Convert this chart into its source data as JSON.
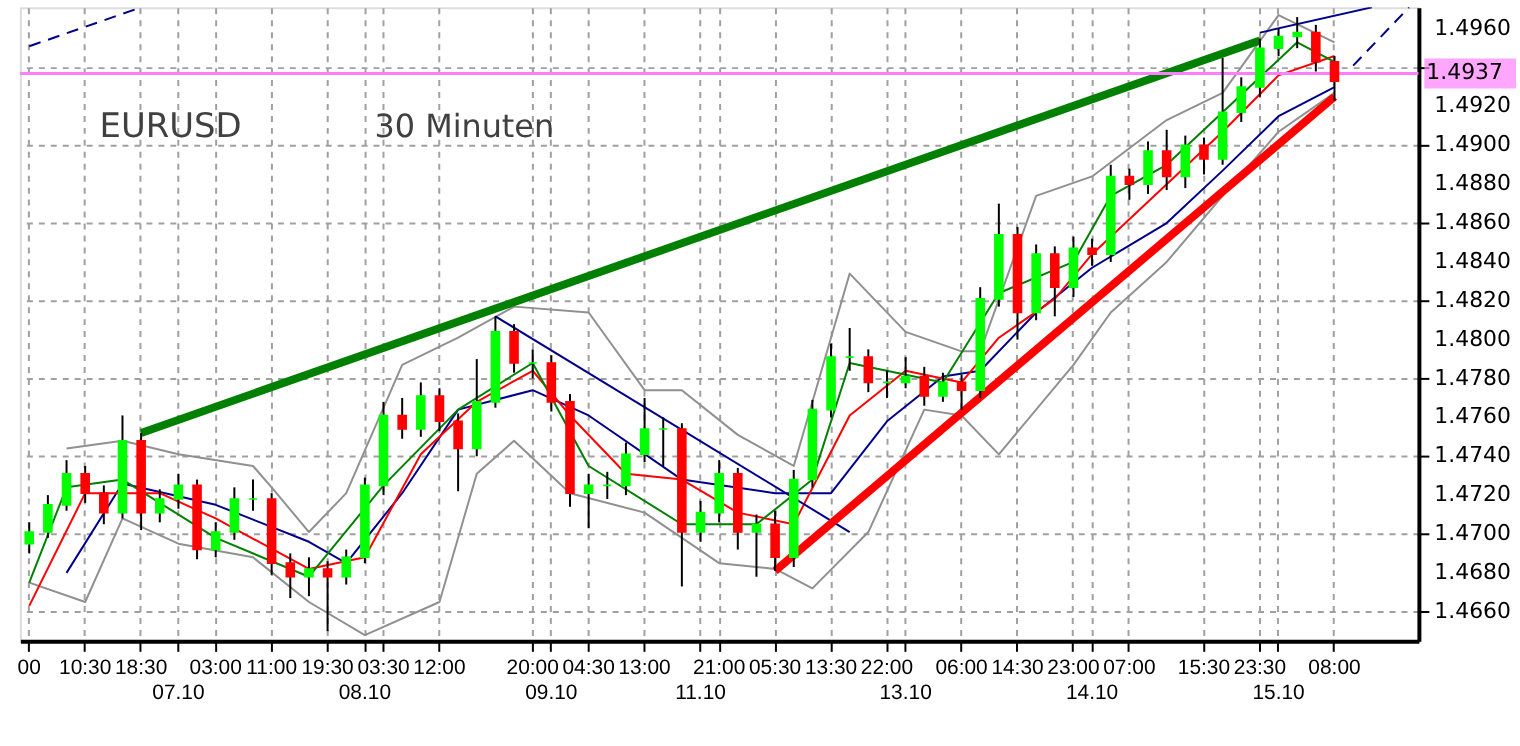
{
  "chart_data": {
    "type": "candlestick",
    "ylim": [
      1.4645,
      1.4971
    ],
    "categories": [
      "00",
      null,
      null,
      "10:30",
      null,
      null,
      "18:30",
      null,
      "07.10",
      null,
      "03:00",
      null,
      null,
      "11:00",
      null,
      null,
      "19:30",
      null,
      "08.10",
      "03:30",
      null,
      null,
      "12:00",
      null,
      null,
      null,
      null,
      "20:00",
      "09.10",
      null,
      "04:30",
      null,
      null,
      "13:00",
      null,
      null,
      "11.10",
      "21:00",
      null,
      null,
      "05:30",
      null,
      null,
      "13:30",
      null,
      null,
      "22:00",
      "13.10",
      null,
      null,
      "06:00",
      null,
      null,
      "14:30",
      null,
      null,
      "23:00",
      "14.10",
      null,
      "07:00",
      null,
      null,
      null,
      "15:30",
      null,
      null,
      "23:30",
      "15.10",
      null,
      null,
      "08:00",
      null,
      null,
      null,
      null
    ],
    "yticks": [
      {
        "value": 1.466,
        "label": "1.4660"
      },
      {
        "value": 1.468,
        "label": "1.4680"
      },
      {
        "value": 1.47,
        "label": "1.4700"
      },
      {
        "value": 1.472,
        "label": "1.4720"
      },
      {
        "value": 1.474,
        "label": "1.4740"
      },
      {
        "value": 1.476,
        "label": "1.4760"
      },
      {
        "value": 1.478,
        "label": "1.4780"
      },
      {
        "value": 1.48,
        "label": "1.4800"
      },
      {
        "value": 1.482,
        "label": "1.4820"
      },
      {
        "value": 1.484,
        "label": "1.4840"
      },
      {
        "value": 1.486,
        "label": "1.4860"
      },
      {
        "value": 1.488,
        "label": "1.4880"
      },
      {
        "value": 1.49,
        "label": "1.4900"
      },
      {
        "value": 1.492,
        "label": "1.4920"
      },
      {
        "value": 1.494,
        "label": null
      },
      {
        "value": 1.496,
        "label": "1.4960"
      }
    ],
    "grid": true,
    "ohlc": [
      [
        1.4695,
        1.4706,
        1.469,
        1.4701
      ],
      [
        1.4701,
        1.472,
        1.4698,
        1.4715
      ],
      [
        1.4715,
        1.4738,
        1.4712,
        1.4731
      ],
      [
        1.4731,
        1.4735,
        1.4716,
        1.4721
      ],
      [
        1.4721,
        1.4725,
        1.4705,
        1.4711
      ],
      [
        1.4711,
        1.4761,
        1.4708,
        1.4748
      ],
      [
        1.4748,
        1.4752,
        1.4702,
        1.4711
      ],
      [
        1.4711,
        1.4723,
        1.4706,
        1.4718
      ],
      [
        1.4718,
        1.4731,
        1.4713,
        1.4725
      ],
      [
        1.4725,
        1.4728,
        1.4687,
        1.4692
      ],
      [
        1.4692,
        1.4706,
        1.4688,
        1.4701
      ],
      [
        1.4701,
        1.4724,
        1.4697,
        1.4718
      ],
      [
        1.4718,
        1.4728,
        1.4712,
        1.4718
      ],
      [
        1.4718,
        1.4721,
        1.4679,
        1.4685
      ],
      [
        1.4685,
        1.469,
        1.4667,
        1.4678
      ],
      [
        1.4678,
        1.4688,
        1.4668,
        1.4682
      ],
      [
        1.4682,
        1.4686,
        1.465,
        1.4678
      ],
      [
        1.4678,
        1.4692,
        1.4674,
        1.4688
      ],
      [
        1.4688,
        1.4729,
        1.4685,
        1.4725
      ],
      [
        1.4725,
        1.4768,
        1.472,
        1.4761
      ],
      [
        1.4761,
        1.477,
        1.4749,
        1.4754
      ],
      [
        1.4754,
        1.4778,
        1.475,
        1.4771
      ],
      [
        1.4771,
        1.4775,
        1.4753,
        1.4758
      ],
      [
        1.4758,
        1.4762,
        1.4722,
        1.4744
      ],
      [
        1.4744,
        1.479,
        1.474,
        1.4768
      ],
      [
        1.4768,
        1.4812,
        1.4765,
        1.4804
      ],
      [
        1.4804,
        1.4808,
        1.4783,
        1.4788
      ],
      [
        1.4788,
        1.4795,
        1.478,
        1.4788
      ],
      [
        1.4788,
        1.4792,
        1.4763,
        1.4768
      ],
      [
        1.4768,
        1.4772,
        1.4714,
        1.4721
      ],
      [
        1.4721,
        1.4731,
        1.4703,
        1.4725
      ],
      [
        1.4725,
        1.4732,
        1.4718,
        1.4725
      ],
      [
        1.4725,
        1.4747,
        1.472,
        1.4741
      ],
      [
        1.4741,
        1.477,
        1.4737,
        1.4754
      ],
      [
        1.4754,
        1.476,
        1.4735,
        1.4754
      ],
      [
        1.4754,
        1.4757,
        1.4673,
        1.4701
      ],
      [
        1.4701,
        1.4717,
        1.4696,
        1.4711
      ],
      [
        1.4711,
        1.4738,
        1.4706,
        1.4731
      ],
      [
        1.4731,
        1.4734,
        1.4692,
        1.4701
      ],
      [
        1.4701,
        1.471,
        1.4678,
        1.4705
      ],
      [
        1.4705,
        1.4712,
        1.4681,
        1.4688
      ],
      [
        1.4688,
        1.4733,
        1.4683,
        1.4728
      ],
      [
        1.4728,
        1.4769,
        1.4724,
        1.4764
      ],
      [
        1.4764,
        1.4798,
        1.476,
        1.4791
      ],
      [
        1.4791,
        1.4806,
        1.4784,
        1.4791
      ],
      [
        1.4791,
        1.4795,
        1.4773,
        1.4778
      ],
      [
        1.4778,
        1.4784,
        1.477,
        1.4778
      ],
      [
        1.4778,
        1.4791,
        1.4775,
        1.4781
      ],
      [
        1.4781,
        1.4786,
        1.4766,
        1.4771
      ],
      [
        1.4771,
        1.4783,
        1.4768,
        1.4778
      ],
      [
        1.4778,
        1.4782,
        1.4764,
        1.4774
      ],
      [
        1.4774,
        1.4827,
        1.477,
        1.4821
      ],
      [
        1.4821,
        1.487,
        1.4817,
        1.4854
      ],
      [
        1.4854,
        1.4858,
        1.48,
        1.4814
      ],
      [
        1.4814,
        1.4849,
        1.481,
        1.4844
      ],
      [
        1.4844,
        1.4848,
        1.4812,
        1.4827
      ],
      [
        1.4827,
        1.4853,
        1.4822,
        1.4847
      ],
      [
        1.4847,
        1.4852,
        1.4838,
        1.4844
      ],
      [
        1.4844,
        1.489,
        1.484,
        1.4884
      ],
      [
        1.4884,
        1.4888,
        1.4872,
        1.488
      ],
      [
        1.488,
        1.4902,
        1.4875,
        1.4897
      ],
      [
        1.4897,
        1.4908,
        1.4877,
        1.4884
      ],
      [
        1.4884,
        1.4905,
        1.4878,
        1.49
      ],
      [
        1.49,
        1.4904,
        1.4885,
        1.4893
      ],
      [
        1.4893,
        1.4945,
        1.489,
        1.4917
      ],
      [
        1.4917,
        1.4935,
        1.4912,
        1.493
      ],
      [
        1.493,
        1.4955,
        1.4925,
        1.495
      ],
      [
        1.495,
        1.496,
        1.4946,
        1.4956
      ],
      [
        1.4956,
        1.4966,
        1.495,
        1.4958
      ],
      [
        1.4958,
        1.4962,
        1.4938,
        1.4943
      ],
      [
        1.4943,
        1.4946,
        1.4923,
        1.4933
      ],
      null,
      null,
      null,
      null
    ],
    "colors": [
      "#00ff00",
      "#00ff00",
      "#00ff00",
      "#ff0000",
      "#ff0000",
      "#00ff00",
      "#ff0000",
      "#00ff00",
      "#00ff00",
      "#ff0000",
      "#00ff00",
      "#00ff00",
      "#00ff00",
      "#ff0000",
      "#ff0000",
      "#00ff00",
      "#ff0000",
      "#00ff00",
      "#00ff00",
      "#00ff00",
      "#ff0000",
      "#00ff00",
      "#ff0000",
      "#ff0000",
      "#00ff00",
      "#00ff00",
      "#ff0000",
      "#00ff00",
      "#ff0000",
      "#ff0000",
      "#00ff00",
      "#00ff00",
      "#00ff00",
      "#00ff00",
      "#00ff00",
      "#ff0000",
      "#00ff00",
      "#00ff00",
      "#ff0000",
      "#00ff00",
      "#ff0000",
      "#00ff00",
      "#00ff00",
      "#00ff00",
      "#00ff00",
      "#ff0000",
      "#00ff00",
      "#00ff00",
      "#ff0000",
      "#00ff00",
      "#ff0000",
      "#00ff00",
      "#00ff00",
      "#ff0000",
      "#00ff00",
      "#ff0000",
      "#00ff00",
      "#ff0000",
      "#00ff00",
      "#ff0000",
      "#00ff00",
      "#ff0000",
      "#00ff00",
      "#ff0000",
      "#00ff00",
      "#00ff00",
      "#00ff00",
      "#00ff00",
      "#00ff00",
      "#ff0000",
      "#ff0000",
      null,
      null,
      null,
      null
    ],
    "series": [
      {
        "type": "line",
        "color": "#909090",
        "line_style": "solid",
        "values": [
          null,
          null,
          1.4744,
          null,
          null,
          1.4748,
          null,
          null,
          1.4741,
          null,
          null,
          null,
          1.4735,
          1.4724,
          null,
          1.4701,
          null,
          1.4721,
          null,
          null,
          1.4787,
          null,
          null,
          1.4801,
          null,
          null,
          1.4817,
          null,
          null,
          null,
          1.4814,
          null,
          null,
          1.4774,
          null,
          1.4774,
          null,
          null,
          1.4751,
          null,
          null,
          1.4735,
          null,
          null,
          1.4834,
          null,
          null,
          1.4804,
          null,
          null,
          1.4794,
          1.4794,
          null,
          null,
          1.4874,
          null,
          null,
          1.4884,
          null,
          null,
          null,
          1.4913,
          null,
          null,
          1.4927,
          null,
          null,
          1.4967,
          null,
          null,
          1.4953,
          null,
          null,
          null,
          null
        ]
      },
      {
        "type": "line",
        "color": "#909090",
        "line_style": "solid",
        "values": [
          1.4675,
          null,
          null,
          1.4665,
          null,
          1.4708,
          null,
          null,
          1.4695,
          null,
          null,
          null,
          1.4688,
          null,
          null,
          1.4665,
          null,
          null,
          1.4648,
          null,
          null,
          null,
          1.4665,
          null,
          1.4731,
          null,
          1.4748,
          null,
          null,
          1.4721,
          null,
          null,
          null,
          1.4711,
          null,
          null,
          null,
          1.4685,
          null,
          null,
          1.4682,
          null,
          1.4672,
          null,
          null,
          1.4701,
          null,
          null,
          1.4764,
          null,
          1.4761,
          null,
          1.4741,
          null,
          null,
          null,
          1.4787,
          null,
          1.4814,
          null,
          null,
          1.484,
          null,
          null,
          1.4874,
          null,
          null,
          1.4907,
          null,
          null,
          1.4927,
          null,
          null,
          null,
          null
        ]
      },
      {
        "type": "line",
        "color": "#00008b",
        "line_style": "solid",
        "values": [
          null,
          null,
          1.468,
          null,
          null,
          1.4726,
          null,
          null,
          null,
          null,
          1.4715,
          null,
          null,
          null,
          null,
          1.4696,
          null,
          1.4685,
          null,
          null,
          1.4721,
          null,
          null,
          1.4764,
          null,
          null,
          null,
          1.4774,
          null,
          null,
          1.4761,
          null,
          null,
          null,
          null,
          1.4728,
          null,
          null,
          null,
          null,
          1.4721,
          null,
          null,
          1.4721,
          null,
          null,
          1.4758,
          null,
          null,
          1.4781,
          null,
          1.4784,
          null,
          null,
          1.4814,
          null,
          null,
          1.4837,
          null,
          null,
          null,
          1.486,
          null,
          null,
          1.4887,
          null,
          null,
          1.4915,
          null,
          null,
          1.493,
          null,
          null,
          null,
          null
        ]
      },
      {
        "type": "line",
        "color": "#ff0000",
        "line_style": "solid",
        "values": [
          1.4663,
          null,
          null,
          1.4721,
          null,
          null,
          null,
          1.4721,
          null,
          null,
          1.4708,
          null,
          null,
          null,
          null,
          1.4682,
          null,
          null,
          1.4688,
          null,
          null,
          1.4741,
          null,
          null,
          1.4768,
          null,
          null,
          1.4784,
          null,
          1.4761,
          null,
          null,
          1.4731,
          null,
          null,
          1.4728,
          null,
          null,
          1.4711,
          null,
          null,
          1.4705,
          null,
          null,
          1.4761,
          null,
          null,
          1.4784,
          null,
          null,
          1.4778,
          null,
          1.4801,
          null,
          null,
          1.4821,
          null,
          1.4844,
          null,
          null,
          null,
          1.488,
          null,
          null,
          1.4907,
          null,
          null,
          1.4936,
          null,
          null,
          1.4946,
          null,
          null,
          null,
          null
        ]
      },
      {
        "type": "line",
        "color": "#008000",
        "line_style": "solid",
        "values": [
          1.4675,
          null,
          1.4724,
          null,
          null,
          1.4728,
          null,
          null,
          null,
          null,
          1.4698,
          null,
          null,
          null,
          null,
          1.4678,
          null,
          null,
          null,
          1.4725,
          null,
          null,
          null,
          1.4764,
          null,
          null,
          null,
          1.4788,
          null,
          null,
          1.4735,
          null,
          null,
          null,
          null,
          1.4705,
          null,
          null,
          null,
          1.4705,
          null,
          null,
          1.4728,
          null,
          1.4788,
          null,
          null,
          null,
          null,
          1.4778,
          null,
          null,
          1.4824,
          null,
          null,
          null,
          1.484,
          null,
          1.4874,
          null,
          null,
          1.489,
          null,
          null,
          1.4917,
          null,
          null,
          null,
          1.4953,
          null,
          1.4943,
          null,
          null,
          null,
          null
        ]
      },
      {
        "type": "line",
        "color": "#00008b",
        "line_style": "solid",
        "values": [
          null,
          null,
          null,
          null,
          null,
          null,
          null,
          null,
          null,
          null,
          null,
          null,
          null,
          null,
          null,
          null,
          null,
          null,
          null,
          null,
          null,
          null,
          null,
          null,
          null,
          1.4812,
          null,
          null,
          null,
          null,
          null,
          null,
          null,
          null,
          null,
          null,
          null,
          null,
          null,
          null,
          null,
          null,
          null,
          null,
          1.4701,
          null,
          null,
          null,
          null,
          null,
          null,
          null,
          null,
          null,
          null,
          null,
          null,
          null,
          null,
          null,
          null,
          null,
          null,
          null,
          null,
          null,
          null,
          null,
          null,
          null,
          null,
          null,
          null,
          null,
          null
        ]
      },
      {
        "type": "line",
        "color": "#00008b",
        "line_style": "solid",
        "values": [
          null,
          null,
          null,
          null,
          null,
          null,
          null,
          null,
          null,
          null,
          null,
          null,
          null,
          null,
          null,
          null,
          null,
          null,
          null,
          null,
          null,
          null,
          null,
          null,
          null,
          null,
          null,
          null,
          null,
          null,
          null,
          null,
          null,
          null,
          null,
          null,
          null,
          null,
          null,
          null,
          null,
          null,
          null,
          null,
          null,
          null,
          null,
          null,
          null,
          null,
          null,
          null,
          null,
          null,
          null,
          null,
          null,
          null,
          null,
          null,
          null,
          null,
          null,
          null,
          null,
          null,
          1.4958,
          null,
          null,
          null,
          null,
          null,
          1.4971,
          null,
          null
        ]
      },
      {
        "type": "line",
        "color": "#00008b",
        "line_style": "dashed",
        "values": [
          1.4951,
          null,
          null,
          null,
          null,
          null,
          1.4971,
          null,
          null,
          null,
          null,
          null,
          null,
          null,
          null,
          null,
          null,
          null,
          null,
          null,
          null,
          null,
          null,
          null,
          null,
          null,
          null,
          null,
          null,
          null,
          null,
          null,
          null,
          null,
          null,
          null,
          null,
          null,
          null,
          null,
          null,
          null,
          null,
          null,
          null,
          null,
          null,
          null,
          null,
          null,
          null,
          null,
          null,
          null,
          null,
          null,
          null,
          null,
          null,
          null,
          null,
          null,
          null,
          null,
          null,
          null,
          null,
          null,
          null,
          null,
          null,
          null,
          null,
          null,
          null
        ]
      },
      {
        "type": "line",
        "color": "#00008b",
        "line_style": "dashed",
        "values": [
          null,
          null,
          null,
          null,
          null,
          null,
          null,
          null,
          null,
          null,
          null,
          null,
          null,
          null,
          null,
          null,
          null,
          null,
          null,
          null,
          null,
          null,
          null,
          null,
          null,
          null,
          null,
          null,
          null,
          null,
          null,
          null,
          null,
          null,
          null,
          null,
          null,
          null,
          null,
          null,
          null,
          null,
          null,
          null,
          null,
          null,
          null,
          null,
          null,
          null,
          null,
          null,
          null,
          null,
          null,
          null,
          null,
          null,
          null,
          null,
          null,
          null,
          null,
          null,
          null,
          null,
          null,
          null,
          null,
          null,
          null,
          1.4941,
          null,
          null,
          1.4971
        ]
      },
      {
        "type": "line",
        "color": "#008000",
        "line_style": "solid",
        "values": [
          null,
          null,
          null,
          null,
          null,
          null,
          1.4752,
          null,
          null,
          null,
          null,
          null,
          null,
          null,
          null,
          null,
          null,
          null,
          null,
          null,
          null,
          null,
          null,
          null,
          null,
          null,
          null,
          null,
          null,
          null,
          null,
          null,
          null,
          null,
          null,
          null,
          null,
          null,
          null,
          null,
          null,
          null,
          null,
          null,
          null,
          null,
          null,
          null,
          null,
          null,
          null,
          null,
          null,
          null,
          null,
          null,
          null,
          null,
          null,
          null,
          null,
          null,
          null,
          null,
          null,
          null,
          1.4954,
          null,
          null,
          null,
          null,
          null,
          null,
          null,
          null
        ]
      },
      {
        "type": "line",
        "color": "#ff0000",
        "line_style": "solid",
        "values": [
          null,
          null,
          null,
          null,
          null,
          null,
          null,
          null,
          null,
          null,
          null,
          null,
          null,
          null,
          null,
          null,
          null,
          null,
          null,
          null,
          null,
          null,
          null,
          null,
          null,
          null,
          null,
          null,
          null,
          null,
          null,
          null,
          null,
          null,
          null,
          null,
          null,
          null,
          null,
          null,
          1.4681,
          null,
          null,
          null,
          null,
          null,
          null,
          null,
          null,
          null,
          null,
          null,
          null,
          null,
          null,
          null,
          null,
          null,
          null,
          null,
          null,
          null,
          null,
          null,
          null,
          null,
          null,
          null,
          null,
          null,
          1.4925,
          null,
          null,
          null,
          null
        ]
      }
    ],
    "ref_lines": [
      {
        "axis": "y",
        "value": 1.4937,
        "label": "1.4937",
        "color": "#ff80ff"
      }
    ],
    "annotations": [
      "EURUSD",
      "30 Minuten"
    ]
  }
}
